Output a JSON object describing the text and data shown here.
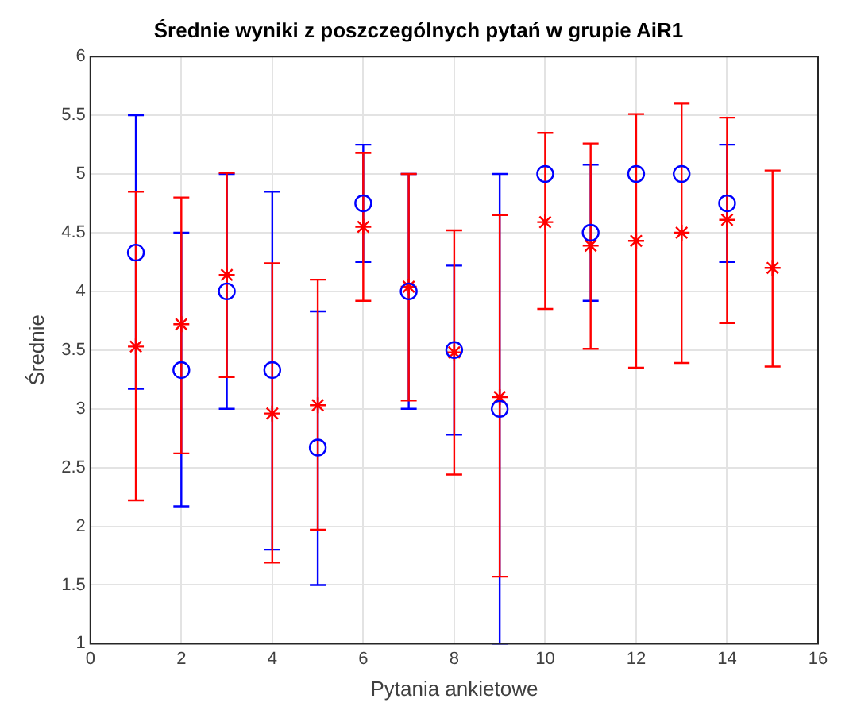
{
  "chart_data": {
    "type": "scatter",
    "title": "Średnie wyniki z poszczególnych pytań w grupie AiR1",
    "xlabel": "Pytania ankietowe",
    "ylabel": "Średnie",
    "xlim": [
      0,
      16
    ],
    "xticks": [
      0,
      2,
      4,
      6,
      8,
      10,
      12,
      14,
      16
    ],
    "ylim": [
      1,
      6
    ],
    "yticks": [
      1,
      1.5,
      2,
      2.5,
      3,
      3.5,
      4,
      4.5,
      5,
      5.5,
      6
    ],
    "grid": true,
    "legend": false,
    "series": [
      {
        "color": "#0000ff",
        "marker": "circle",
        "x": [
          1,
          2,
          3,
          4,
          5,
          6,
          7,
          8,
          9,
          10,
          11,
          12,
          13,
          14
        ],
        "values": [
          4.33,
          3.33,
          4,
          3.33,
          2.67,
          4.75,
          4,
          3.5,
          3,
          5,
          4.5,
          5,
          5,
          4.75
        ],
        "errors": [
          [
            3.17,
            5.5
          ],
          [
            2.17,
            4.5
          ],
          [
            3,
            5
          ],
          [
            1.8,
            4.85
          ],
          [
            1.5,
            3.83
          ],
          [
            4.25,
            5.25
          ],
          [
            3,
            5
          ],
          [
            2.78,
            4.22
          ],
          [
            1,
            5
          ],
          null,
          [
            3.92,
            5.08
          ],
          null,
          null,
          [
            4.25,
            5.25
          ]
        ]
      },
      {
        "color": "#ff0000",
        "marker": "cross",
        "x": [
          1,
          2,
          3,
          4,
          5,
          6,
          7,
          8,
          9,
          10,
          11,
          12,
          13,
          14,
          15
        ],
        "values": [
          3.53,
          3.72,
          4.14,
          2.96,
          3.03,
          4.55,
          4.04,
          3.48,
          3.1,
          4.59,
          4.39,
          4.43,
          4.5,
          4.61,
          4.2
        ],
        "errors": [
          [
            2.22,
            4.85
          ],
          [
            2.62,
            4.8
          ],
          [
            3.27,
            5.01
          ],
          [
            1.69,
            4.24
          ],
          [
            1.97,
            4.1
          ],
          [
            3.92,
            5.18
          ],
          [
            3.07,
            5
          ],
          [
            2.44,
            4.52
          ],
          [
            1.57,
            4.65
          ],
          [
            3.85,
            5.35
          ],
          [
            3.51,
            5.26
          ],
          [
            3.35,
            5.51
          ],
          [
            3.39,
            5.6
          ],
          [
            3.73,
            5.48
          ],
          [
            3.36,
            5.03
          ]
        ]
      }
    ]
  }
}
